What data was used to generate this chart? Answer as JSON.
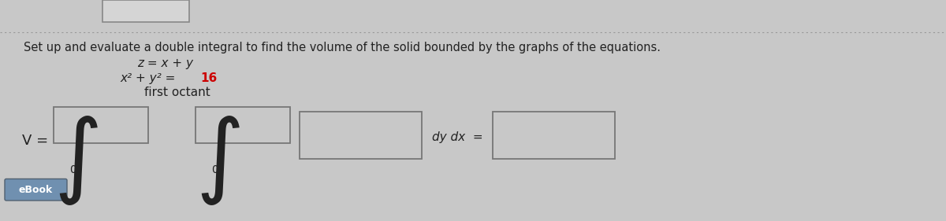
{
  "background_color": "#c8c8c8",
  "title_text": "Set up and evaluate a double integral to find the volume of the solid bounded by the graphs of the equations.",
  "title_fontsize": 10.5,
  "eq1": "z = x + y",
  "eq2_part1": "x² + y² = ",
  "eq2_part2": "16",
  "eq2_color": "#cc0000",
  "eq3": "first octant",
  "v_label": "V =",
  "dy_dx_label": "dy dx  =",
  "ebook_label": "eBook",
  "box_fill": "#c8c8c8",
  "box_edge": "#777777",
  "integral_color": "#222222",
  "text_color": "#222222",
  "ebook_fill": "#7090b0",
  "ebook_text": "white"
}
